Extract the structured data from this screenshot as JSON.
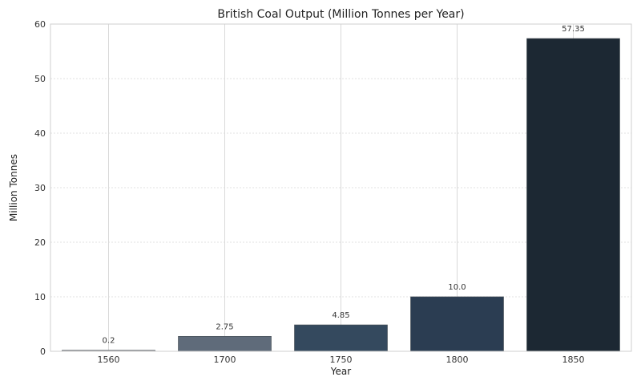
{
  "chart_data": {
    "type": "bar",
    "title": "British Coal Output (Million Tonnes per Year)",
    "xlabel": "Year",
    "ylabel": "Million Tonnes",
    "categories": [
      "1560",
      "1700",
      "1750",
      "1800",
      "1850"
    ],
    "values": [
      0.2,
      2.75,
      4.85,
      10.0,
      57.35
    ],
    "value_labels": [
      "0.2",
      "2.75",
      "4.85",
      "10.0",
      "57.35"
    ],
    "ylim": [
      0,
      60
    ],
    "yticks": [
      "0",
      "10",
      "20",
      "30",
      "40",
      "50",
      "60"
    ],
    "grid": true,
    "bar_colors": [
      "#a9abae",
      "#5f6b7a",
      "#34495e",
      "#2b3d52",
      "#1c2833"
    ]
  }
}
